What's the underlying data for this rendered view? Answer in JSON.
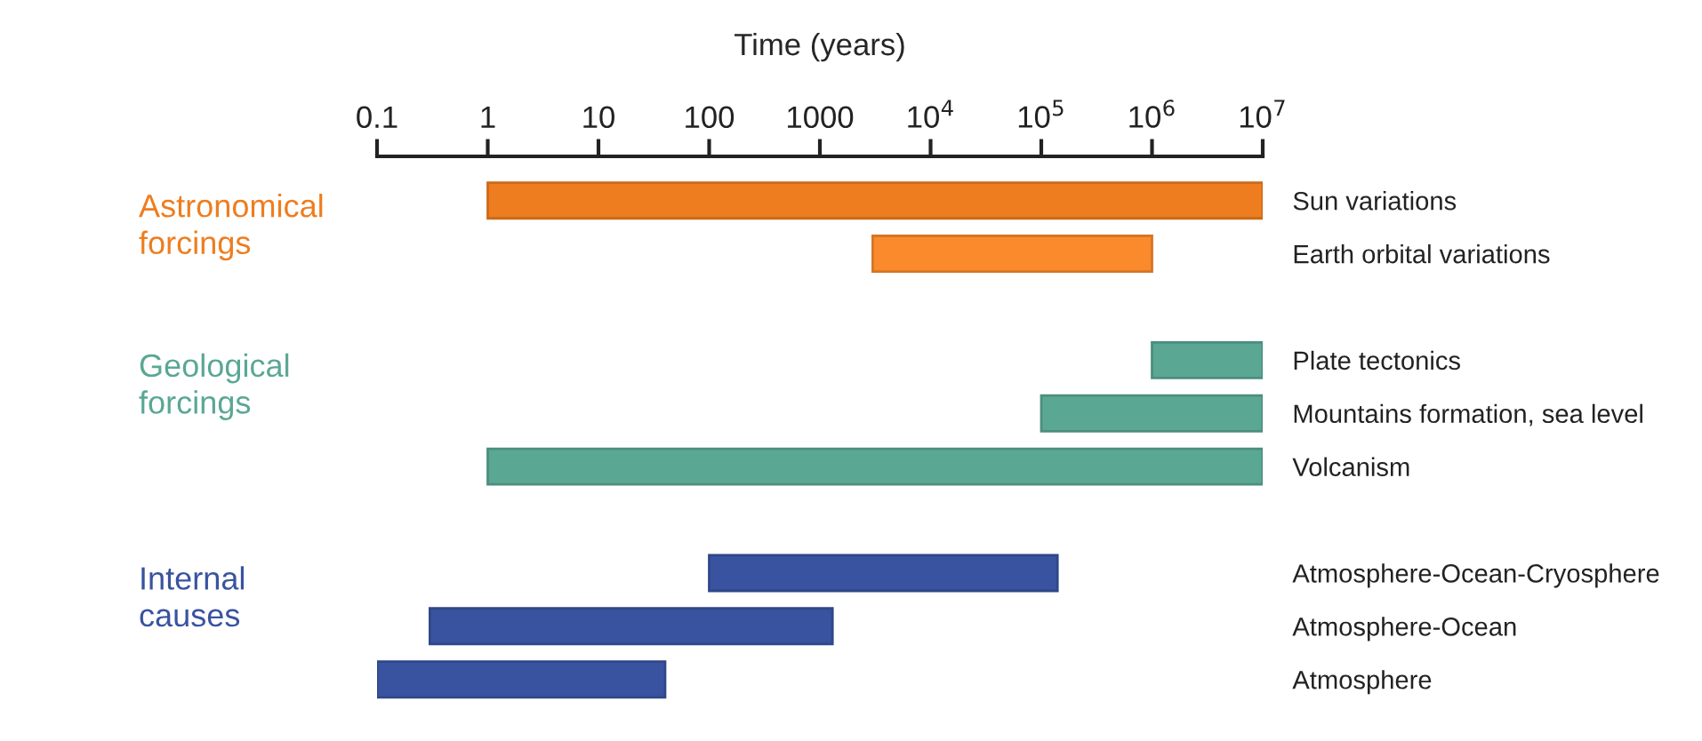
{
  "chart_data": {
    "type": "bar",
    "orientation": "horizontal",
    "log": "x",
    "xlabel": "Time (years)",
    "categories": [
      "Sun variations",
      "Earth orbital variations",
      null,
      "Plate tectonics",
      "Mountains formation, sea level",
      "Volcanism",
      null,
      "Atmosphere-Ocean-Cryosphere",
      "Atmosphere-Ocean",
      "Atmosphere"
    ],
    "base": [
      1,
      3000,
      null,
      1000000,
      100000,
      1,
      null,
      100,
      0.3,
      0.1
    ],
    "values": [
      9999999,
      997000,
      null,
      9000000,
      9900000,
      9999999,
      null,
      139900,
      1299.7,
      39.9
    ],
    "colors": [
      "#ee7d1f",
      "#fb8a2c",
      "#ffffff",
      "#5aa794",
      "#5aa794",
      "#5aa794",
      "#ffffff",
      "#3953a0",
      "#3953a0",
      "#3953a0"
    ],
    "xlim": [
      0.1,
      10000000
    ],
    "xticks": [
      0.1,
      1,
      10,
      100,
      1000,
      {
        "value": 10000,
        "label": "10$^{4}$"
      },
      {
        "value": 100000,
        "label": "10$^{5}$"
      },
      {
        "value": 1000000,
        "label": "10$^{6}$"
      },
      {
        "value": 10000000,
        "label": "10$^{7}$"
      }
    ],
    "annotations": [
      "Astronomical\nforcings",
      "Geological\nforcings",
      "Internal\ncauses"
    ]
  }
}
